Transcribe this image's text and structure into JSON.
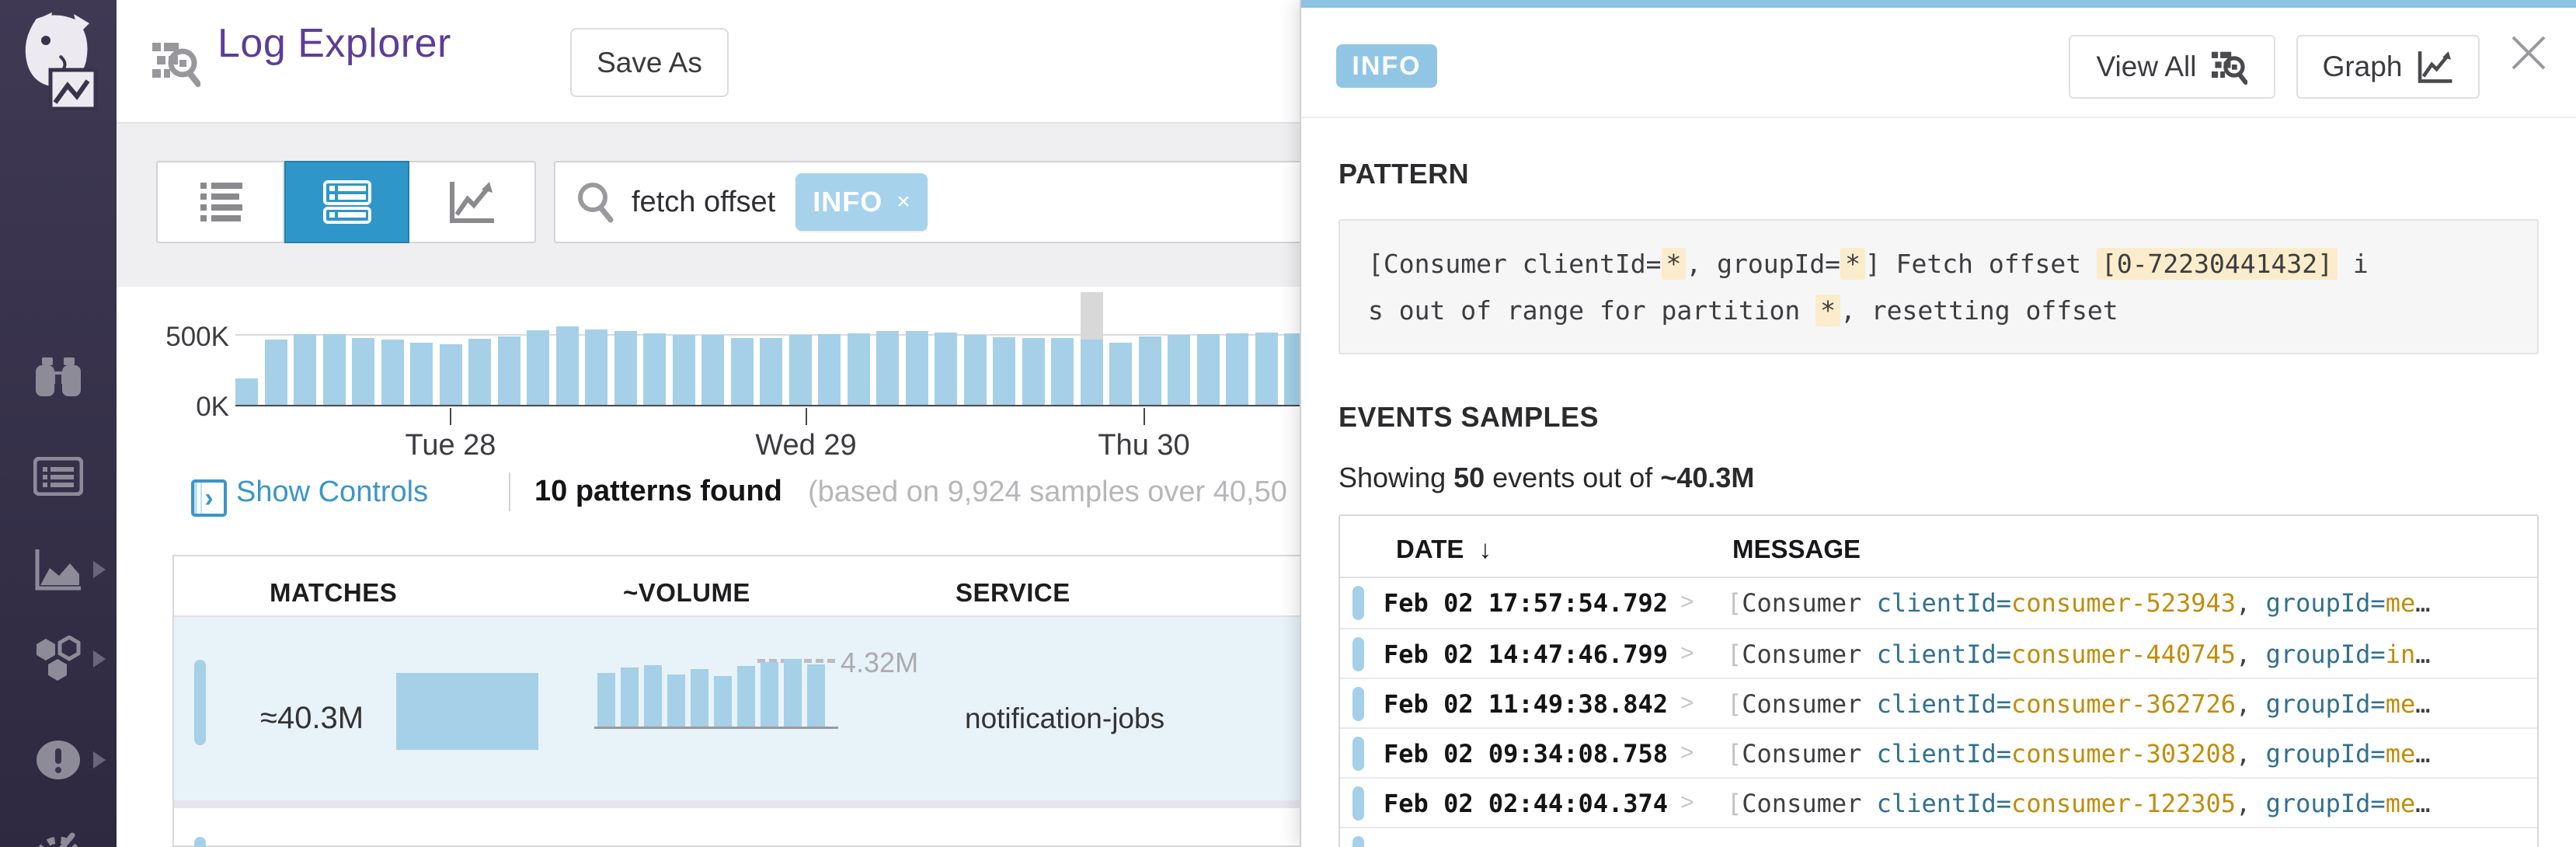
{
  "app": {
    "title": "Log Explorer",
    "save_as_label": "Save As"
  },
  "colors": {
    "accent_purple": "#5c3d99",
    "selected_blue": "#2f96c9",
    "bar_blue": "#a5d0e7",
    "badge_blue": "#90c6e4",
    "tag_blue": "#a6d2ec",
    "highlight_cream": "#fbeccb",
    "key_teal": "#31708f",
    "value_gold": "#c08d0c",
    "sidebar_bg": "#39334b",
    "hover_gray": "#d8d8d9"
  },
  "icons": {
    "datadog-logo": "white dog mascot holding picture sign",
    "log-explorer-icon": "dashed lines with magnifier",
    "list-view-icon": "bulleted list",
    "patterns-view-icon": "stacked grouped rows",
    "timeseries-view-icon": "rising zigzag arrow chart",
    "search-icon": "magnifier",
    "remove-tag-icon": "×",
    "show-controls-icon": "bordered square with right chevron",
    "watchdog-icon": "binoculars",
    "log-stream-icon": "card with list lines",
    "metrics-icon": "area chart with axes",
    "apm-icon": "three hexagons",
    "monitors-icon": "exclamation circle",
    "dashboards-icon": "gauge (partially cut off)",
    "sort-desc-icon": "↓",
    "close-icon": "thin X",
    "graph-icon": "framed zigzag arrow",
    "row-expand-chevron": ">"
  },
  "sidebar": {
    "items": [
      {
        "name": "watchdog",
        "has_arrow": false
      },
      {
        "name": "log-stream",
        "has_arrow": false
      },
      {
        "name": "metrics",
        "has_arrow": true
      },
      {
        "name": "apm-services",
        "has_arrow": true
      },
      {
        "name": "monitors",
        "has_arrow": true
      },
      {
        "name": "dashboards",
        "has_arrow": false
      }
    ]
  },
  "toolbar": {
    "views": [
      "list",
      "patterns",
      "timeseries"
    ],
    "selected_view": "patterns",
    "search": {
      "query": "fetch offset",
      "tag": "INFO",
      "tag_remove": "×"
    }
  },
  "controls_row": {
    "show_controls": "Show Controls",
    "patterns_found": "10 patterns found",
    "note": "(based on 9,924 samples over 40,50"
  },
  "patterns_table": {
    "columns": [
      "MATCHES",
      "~VOLUME",
      "SERVICE"
    ],
    "rows": [
      {
        "matches": "≈40.3M",
        "volume_peak": "4.32M",
        "service": "notification-jobs"
      }
    ]
  },
  "panel": {
    "severity": "INFO",
    "view_all_label": "View All",
    "graph_label": "Graph",
    "pattern_heading": "PATTERN",
    "pattern_lines": [
      [
        {
          "t": "[Consumer clientId="
        },
        {
          "t": "*",
          "h": 1
        },
        {
          "t": ", groupId="
        },
        {
          "t": "*",
          "h": 1
        },
        {
          "t": "] Fetch offset "
        },
        {
          "t": "[0-72230441432]",
          "h": 1
        },
        {
          "t": " i"
        }
      ],
      [
        {
          "t": "s out of range for partition "
        },
        {
          "t": "*",
          "h": 1
        },
        {
          "t": ", resetting offset"
        }
      ]
    ],
    "events_heading": "EVENTS SAMPLES",
    "showing": {
      "p1": "Showing ",
      "count": "50",
      "p2": " events out of ",
      "total": "~40.3M"
    },
    "events_table": {
      "date_header": "DATE",
      "sort_arrow": "↓",
      "message_header": "MESSAGE",
      "rows": [
        {
          "date": "Feb 02 17:57:54.792",
          "segments": [
            {
              "t": "[",
              "c": "dim"
            },
            {
              "t": "Consumer ",
              "c": "p"
            },
            {
              "t": "clientId=",
              "c": "k"
            },
            {
              "t": "consumer-523943",
              "c": "v"
            },
            {
              "t": ", ",
              "c": "p"
            },
            {
              "t": "groupId=",
              "c": "k"
            },
            {
              "t": "me",
              "c": "v"
            },
            {
              "t": "…",
              "c": "p"
            }
          ]
        },
        {
          "date": "Feb 02 14:47:46.799",
          "segments": [
            {
              "t": "[",
              "c": "dim"
            },
            {
              "t": "Consumer ",
              "c": "p"
            },
            {
              "t": "clientId=",
              "c": "k"
            },
            {
              "t": "consumer-440745",
              "c": "v"
            },
            {
              "t": ", ",
              "c": "p"
            },
            {
              "t": "groupId=",
              "c": "k"
            },
            {
              "t": "in",
              "c": "v"
            },
            {
              "t": "…",
              "c": "p"
            }
          ]
        },
        {
          "date": "Feb 02 11:49:38.842",
          "segments": [
            {
              "t": "[",
              "c": "dim"
            },
            {
              "t": "Consumer ",
              "c": "p"
            },
            {
              "t": "clientId=",
              "c": "k"
            },
            {
              "t": "consumer-362726",
              "c": "v"
            },
            {
              "t": ", ",
              "c": "p"
            },
            {
              "t": "groupId=",
              "c": "k"
            },
            {
              "t": "me",
              "c": "v"
            },
            {
              "t": "…",
              "c": "p"
            }
          ]
        },
        {
          "date": "Feb 02 09:34:08.758",
          "segments": [
            {
              "t": "[",
              "c": "dim"
            },
            {
              "t": "Consumer ",
              "c": "p"
            },
            {
              "t": "clientId=",
              "c": "k"
            },
            {
              "t": "consumer-303208",
              "c": "v"
            },
            {
              "t": ", ",
              "c": "p"
            },
            {
              "t": "groupId=",
              "c": "k"
            },
            {
              "t": "me",
              "c": "v"
            },
            {
              "t": "…",
              "c": "p"
            }
          ]
        },
        {
          "date": "Feb 02 02:44:04.374",
          "segments": [
            {
              "t": "[",
              "c": "dim"
            },
            {
              "t": "Consumer ",
              "c": "p"
            },
            {
              "t": "clientId=",
              "c": "k"
            },
            {
              "t": "consumer-122305",
              "c": "v"
            },
            {
              "t": ", ",
              "c": "p"
            },
            {
              "t": "groupId=",
              "c": "k"
            },
            {
              "t": "me",
              "c": "v"
            },
            {
              "t": "…",
              "c": "p"
            }
          ]
        },
        {
          "date": "",
          "segments": [],
          "partial": true
        }
      ]
    }
  },
  "chart_data": [
    {
      "type": "bar",
      "name": "log-volume-histogram",
      "title": "Log volume over time",
      "ylabel_ticks": [
        "500K",
        "0K"
      ],
      "ylim_k": [
        0,
        850
      ],
      "gridline_k": 500,
      "values_k": [
        190,
        467,
        505,
        505,
        478,
        467,
        445,
        434,
        472,
        490,
        535,
        560,
        540,
        530,
        510,
        502,
        500,
        480,
        478,
        498,
        508,
        512,
        528,
        530,
        515,
        500,
        482,
        480,
        478,
        465,
        445,
        490,
        500,
        508,
        512,
        515,
        512
      ],
      "hover_overlay": {
        "index": 29,
        "total_k": 800
      },
      "x_ticks": [
        {
          "label": "Tue 28",
          "index": 7.0
        },
        {
          "label": "Wed 29",
          "index": 19.2
        },
        {
          "label": "Thu 30",
          "index": 30.8
        }
      ]
    },
    {
      "type": "bar",
      "name": "pattern-volume-sparkline",
      "values_m": [
        3.43,
        3.77,
        3.93,
        3.32,
        3.66,
        3.21,
        3.88,
        4.1,
        4.32,
        3.99
      ],
      "annotation": {
        "label": "4.32M",
        "value_m": 4.32
      }
    }
  ]
}
